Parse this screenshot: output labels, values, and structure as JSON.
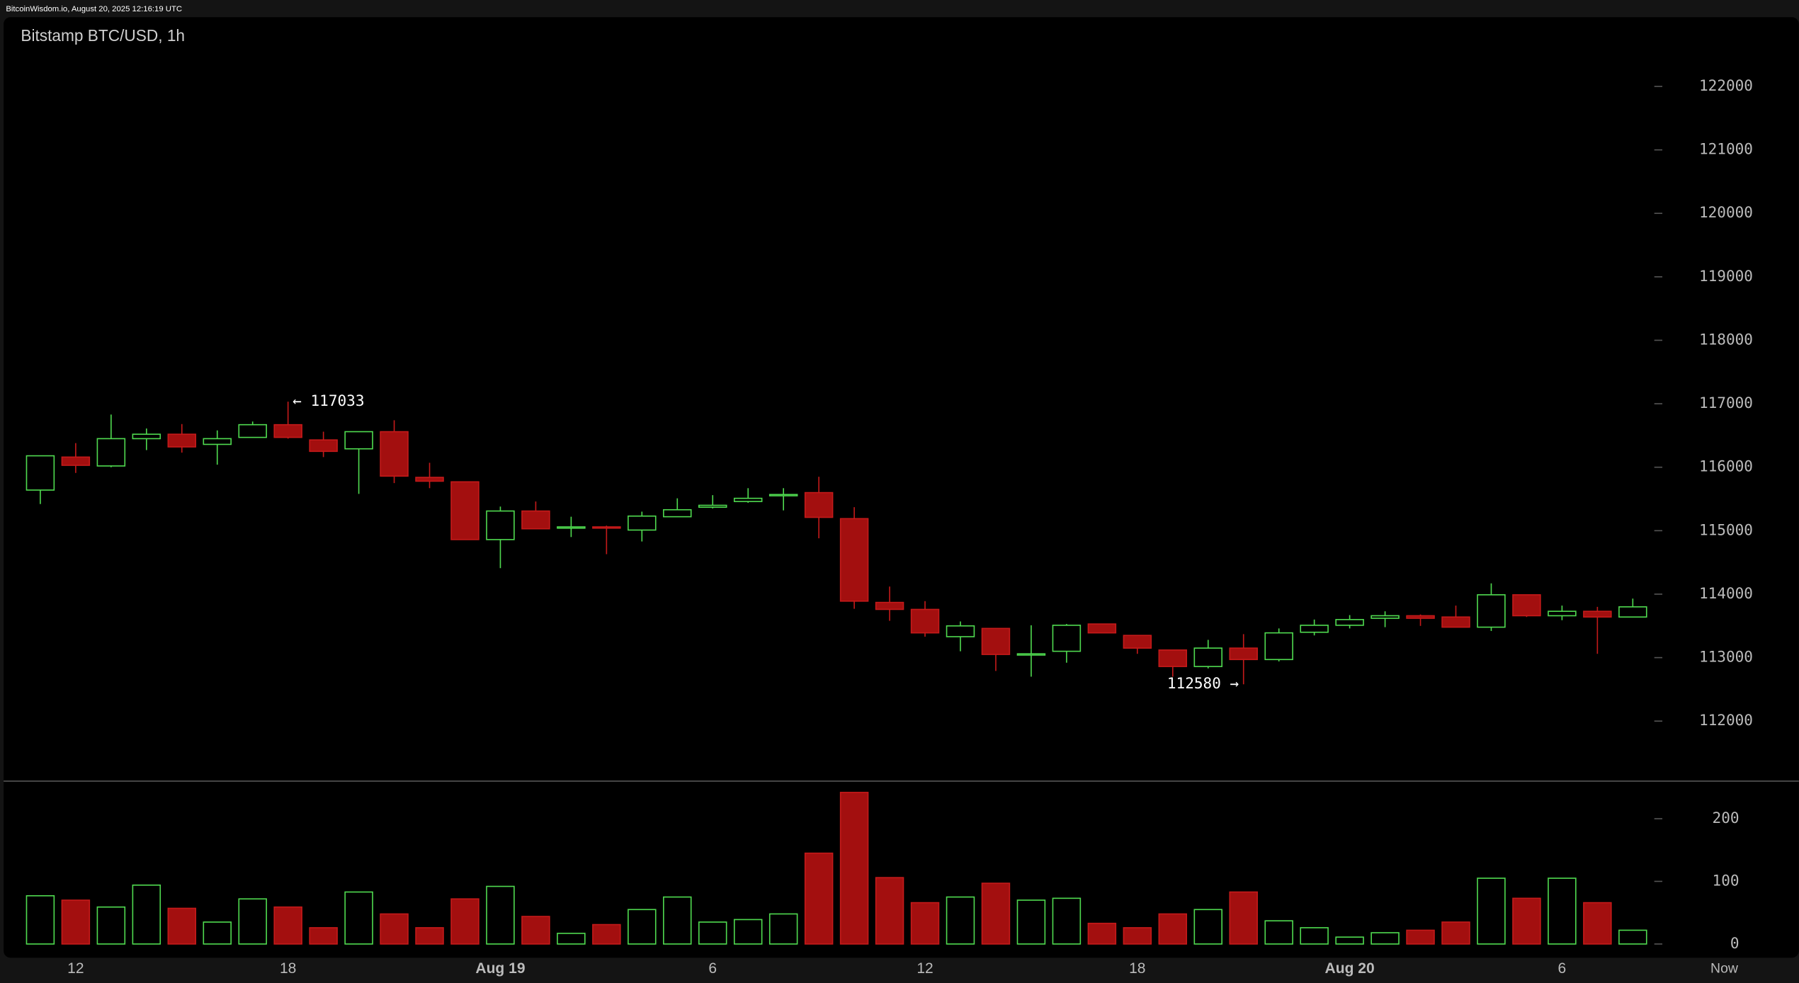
{
  "source": "BitcoinWisdom.io, August 20, 2025 12:16:19 UTC",
  "chart_data": {
    "type": "candlestick",
    "title": "Bitstamp BTC/USD, 1h",
    "categories": [
      null,
      "12",
      null,
      null,
      null,
      null,
      null,
      "18",
      null,
      null,
      null,
      null,
      null,
      "Aug 19",
      null,
      null,
      null,
      null,
      null,
      "6",
      null,
      null,
      null,
      null,
      null,
      "12",
      null,
      null,
      null,
      null,
      null,
      "18",
      null,
      null,
      null,
      null,
      null,
      "Aug 20",
      null,
      null,
      null,
      null,
      null,
      "6",
      null,
      null
    ],
    "end_label": "Now",
    "open": [
      115640,
      116160,
      116020,
      116450,
      116520,
      116360,
      116470,
      116670,
      116430,
      116290,
      116560,
      115840,
      115770,
      114860,
      115310,
      115040,
      115060,
      115010,
      115220,
      115370,
      115460,
      115550,
      115600,
      115190,
      113870,
      113760,
      113330,
      113460,
      113040,
      113100,
      113530,
      113350,
      113120,
      112860,
      113150,
      112970,
      113400,
      113510,
      113620,
      113660,
      113640,
      113480,
      113990,
      113660,
      113730,
      113640
    ],
    "high": [
      116180,
      116380,
      116830,
      116610,
      116680,
      116580,
      116720,
      117033,
      116560,
      116560,
      116740,
      116070,
      115770,
      115380,
      115460,
      115220,
      115080,
      115300,
      115510,
      115560,
      115670,
      115670,
      115850,
      115370,
      114120,
      113890,
      113570,
      113460,
      113510,
      113530,
      113530,
      113350,
      113120,
      113280,
      113370,
      113460,
      113600,
      113670,
      113730,
      113680,
      113820,
      114170,
      113990,
      113820,
      113800,
      113930
    ],
    "low": [
      115420,
      115910,
      116000,
      116270,
      116230,
      116040,
      116470,
      116450,
      116160,
      115580,
      115750,
      115670,
      114860,
      114410,
      115030,
      114900,
      114630,
      114830,
      115220,
      115350,
      115440,
      115320,
      114880,
      113770,
      113580,
      113330,
      113100,
      112790,
      112700,
      112920,
      113390,
      113060,
      112700,
      112830,
      112580,
      112940,
      113350,
      113460,
      113480,
      113500,
      113480,
      113420,
      113640,
      113590,
      113060,
      113640
    ],
    "close": [
      116180,
      116030,
      116450,
      116520,
      116320,
      116450,
      116670,
      116470,
      116250,
      116560,
      115860,
      115780,
      114860,
      115310,
      115030,
      115060,
      115040,
      115230,
      115330,
      115400,
      115510,
      115570,
      115210,
      113890,
      113760,
      113390,
      113500,
      113050,
      113060,
      113510,
      113390,
      113150,
      112860,
      113150,
      112970,
      113390,
      113510,
      113600,
      113660,
      113620,
      113480,
      113990,
      113660,
      113730,
      113640,
      113800
    ],
    "ylim": [
      111000,
      123000
    ],
    "yticks": [
      112000,
      113000,
      114000,
      115000,
      116000,
      117000,
      118000,
      119000,
      120000,
      121000,
      122000
    ],
    "up_color": "#4fd94f",
    "down_color": "#a30f0f",
    "annotations": [
      "← 117033",
      "112580 →"
    ],
    "volume": {
      "values": [
        77,
        70,
        59,
        94,
        57,
        35,
        72,
        59,
        26,
        83,
        48,
        26,
        72,
        92,
        44,
        17,
        31,
        55,
        75,
        35,
        39,
        48,
        145,
        242,
        106,
        66,
        75,
        97,
        70,
        73,
        33,
        26,
        48,
        55,
        83,
        37,
        26,
        11,
        18,
        22,
        35,
        105,
        73,
        105,
        66,
        22
      ],
      "ylim": [
        0,
        260
      ],
      "yticks": [
        0,
        100,
        200
      ]
    }
  }
}
